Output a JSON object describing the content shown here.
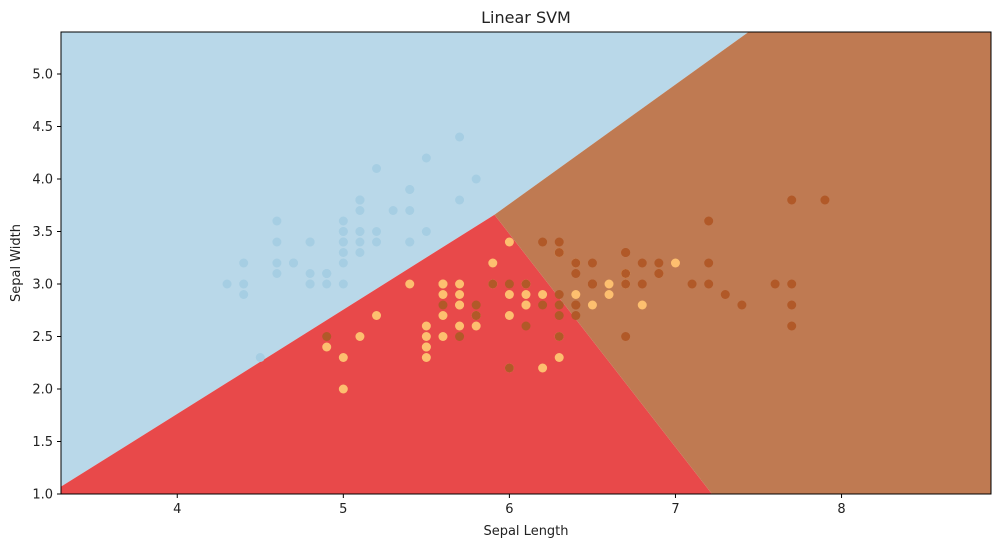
{
  "chart_data": {
    "type": "scatter",
    "title": "Linear SVM",
    "xlabel": "Sepal Length",
    "ylabel": "Sepal Width",
    "xlim": [
      3.3,
      8.9
    ],
    "ylim": [
      1.0,
      5.4
    ],
    "xticks": [
      4,
      5,
      6,
      7,
      8
    ],
    "yticks": [
      "1.0",
      "1.5",
      "2.0",
      "2.5",
      "3.0",
      "3.5",
      "4.0",
      "4.5",
      "5.0"
    ],
    "grid": false,
    "regions": [
      {
        "class": 0,
        "color": "#b9d8e9",
        "polygon": [
          [
            3.3,
            1.07
          ],
          [
            4.35,
            2.11
          ],
          [
            5.91,
            3.66
          ],
          [
            7.44,
            5.4
          ],
          [
            3.3,
            5.4
          ]
        ]
      },
      {
        "class": 1,
        "color": "#e8494a",
        "polygon": [
          [
            3.3,
            1.0
          ],
          [
            7.22,
            1.0
          ],
          [
            5.91,
            3.66
          ],
          [
            4.35,
            2.11
          ],
          [
            3.3,
            1.07
          ]
        ]
      },
      {
        "class": 2,
        "color": "#bf7a52",
        "polygon": [
          [
            7.22,
            1.0
          ],
          [
            8.9,
            1.0
          ],
          [
            8.9,
            5.4
          ],
          [
            7.44,
            5.4
          ],
          [
            5.91,
            3.66
          ]
        ]
      }
    ],
    "series": [
      {
        "class": 0,
        "color": "#a6cee3",
        "points": [
          [
            5.1,
            3.5
          ],
          [
            4.9,
            3.0
          ],
          [
            4.7,
            3.2
          ],
          [
            4.6,
            3.1
          ],
          [
            5.0,
            3.6
          ],
          [
            5.4,
            3.9
          ],
          [
            4.6,
            3.4
          ],
          [
            5.0,
            3.4
          ],
          [
            4.4,
            2.9
          ],
          [
            4.9,
            3.1
          ],
          [
            5.4,
            3.7
          ],
          [
            4.8,
            3.4
          ],
          [
            4.8,
            3.0
          ],
          [
            4.3,
            3.0
          ],
          [
            5.8,
            4.0
          ],
          [
            5.7,
            4.4
          ],
          [
            5.4,
            3.9
          ],
          [
            5.1,
            3.5
          ],
          [
            5.7,
            3.8
          ],
          [
            5.1,
            3.8
          ],
          [
            5.4,
            3.4
          ],
          [
            5.1,
            3.7
          ],
          [
            4.6,
            3.6
          ],
          [
            5.1,
            3.3
          ],
          [
            4.8,
            3.4
          ],
          [
            5.0,
            3.0
          ],
          [
            5.0,
            3.4
          ],
          [
            5.2,
            3.5
          ],
          [
            5.2,
            3.4
          ],
          [
            4.7,
            3.2
          ],
          [
            4.8,
            3.1
          ],
          [
            5.4,
            3.4
          ],
          [
            5.2,
            4.1
          ],
          [
            5.5,
            4.2
          ],
          [
            4.9,
            3.1
          ],
          [
            5.0,
            3.2
          ],
          [
            5.5,
            3.5
          ],
          [
            4.9,
            3.1
          ],
          [
            4.4,
            3.0
          ],
          [
            5.1,
            3.4
          ],
          [
            5.0,
            3.5
          ],
          [
            4.5,
            2.3
          ],
          [
            4.4,
            3.2
          ],
          [
            5.0,
            3.5
          ],
          [
            5.1,
            3.8
          ],
          [
            4.8,
            3.0
          ],
          [
            5.1,
            3.8
          ],
          [
            4.6,
            3.2
          ],
          [
            5.3,
            3.7
          ],
          [
            5.0,
            3.3
          ]
        ]
      },
      {
        "class": 1,
        "color": "#fdbf6f",
        "points": [
          [
            7.0,
            3.2
          ],
          [
            6.4,
            3.2
          ],
          [
            6.9,
            3.1
          ],
          [
            5.5,
            2.3
          ],
          [
            6.5,
            2.8
          ],
          [
            5.7,
            2.8
          ],
          [
            6.3,
            3.3
          ],
          [
            4.9,
            2.4
          ],
          [
            6.6,
            2.9
          ],
          [
            5.2,
            2.7
          ],
          [
            5.0,
            2.0
          ],
          [
            5.9,
            3.0
          ],
          [
            6.0,
            2.2
          ],
          [
            6.1,
            2.9
          ],
          [
            5.6,
            2.9
          ],
          [
            6.7,
            3.1
          ],
          [
            5.6,
            3.0
          ],
          [
            5.8,
            2.7
          ],
          [
            6.2,
            2.2
          ],
          [
            5.6,
            2.5
          ],
          [
            5.9,
            3.2
          ],
          [
            6.1,
            2.8
          ],
          [
            6.3,
            2.5
          ],
          [
            6.1,
            2.8
          ],
          [
            6.4,
            2.9
          ],
          [
            6.6,
            3.0
          ],
          [
            6.8,
            2.8
          ],
          [
            6.7,
            3.0
          ],
          [
            6.0,
            2.9
          ],
          [
            5.7,
            2.6
          ],
          [
            5.5,
            2.4
          ],
          [
            5.5,
            2.4
          ],
          [
            5.8,
            2.7
          ],
          [
            6.0,
            2.7
          ],
          [
            5.4,
            3.0
          ],
          [
            6.0,
            3.4
          ],
          [
            6.7,
            3.1
          ],
          [
            6.3,
            2.3
          ],
          [
            5.6,
            3.0
          ],
          [
            5.5,
            2.5
          ],
          [
            5.5,
            2.6
          ],
          [
            6.1,
            3.0
          ],
          [
            5.8,
            2.6
          ],
          [
            5.0,
            2.3
          ],
          [
            5.6,
            2.7
          ],
          [
            5.7,
            3.0
          ],
          [
            5.7,
            2.9
          ],
          [
            6.2,
            2.9
          ],
          [
            5.1,
            2.5
          ],
          [
            5.7,
            2.8
          ]
        ]
      },
      {
        "class": 2,
        "color": "#b15928",
        "points": [
          [
            6.3,
            3.3
          ],
          [
            5.8,
            2.7
          ],
          [
            7.1,
            3.0
          ],
          [
            6.3,
            2.9
          ],
          [
            6.5,
            3.0
          ],
          [
            7.6,
            3.0
          ],
          [
            4.9,
            2.5
          ],
          [
            7.3,
            2.9
          ],
          [
            6.7,
            2.5
          ],
          [
            7.2,
            3.6
          ],
          [
            6.5,
            3.2
          ],
          [
            6.4,
            2.7
          ],
          [
            6.8,
            3.0
          ],
          [
            5.7,
            2.5
          ],
          [
            5.8,
            2.8
          ],
          [
            6.4,
            3.2
          ],
          [
            6.5,
            3.0
          ],
          [
            7.7,
            3.8
          ],
          [
            7.7,
            2.6
          ],
          [
            6.0,
            2.2
          ],
          [
            6.9,
            3.2
          ],
          [
            5.6,
            2.8
          ],
          [
            7.7,
            2.8
          ],
          [
            6.3,
            2.7
          ],
          [
            6.7,
            3.3
          ],
          [
            7.2,
            3.2
          ],
          [
            6.2,
            2.8
          ],
          [
            6.1,
            3.0
          ],
          [
            6.4,
            2.8
          ],
          [
            7.2,
            3.0
          ],
          [
            7.4,
            2.8
          ],
          [
            7.9,
            3.8
          ],
          [
            6.4,
            2.8
          ],
          [
            6.3,
            2.8
          ],
          [
            6.1,
            2.6
          ],
          [
            7.7,
            3.0
          ],
          [
            6.3,
            3.4
          ],
          [
            6.4,
            3.1
          ],
          [
            6.0,
            3.0
          ],
          [
            6.9,
            3.1
          ],
          [
            6.7,
            3.1
          ],
          [
            6.9,
            3.1
          ],
          [
            5.8,
            2.7
          ],
          [
            6.8,
            3.2
          ],
          [
            6.7,
            3.3
          ],
          [
            6.7,
            3.0
          ],
          [
            6.3,
            2.5
          ],
          [
            6.5,
            3.0
          ],
          [
            6.2,
            3.4
          ],
          [
            5.9,
            3.0
          ]
        ]
      }
    ]
  }
}
